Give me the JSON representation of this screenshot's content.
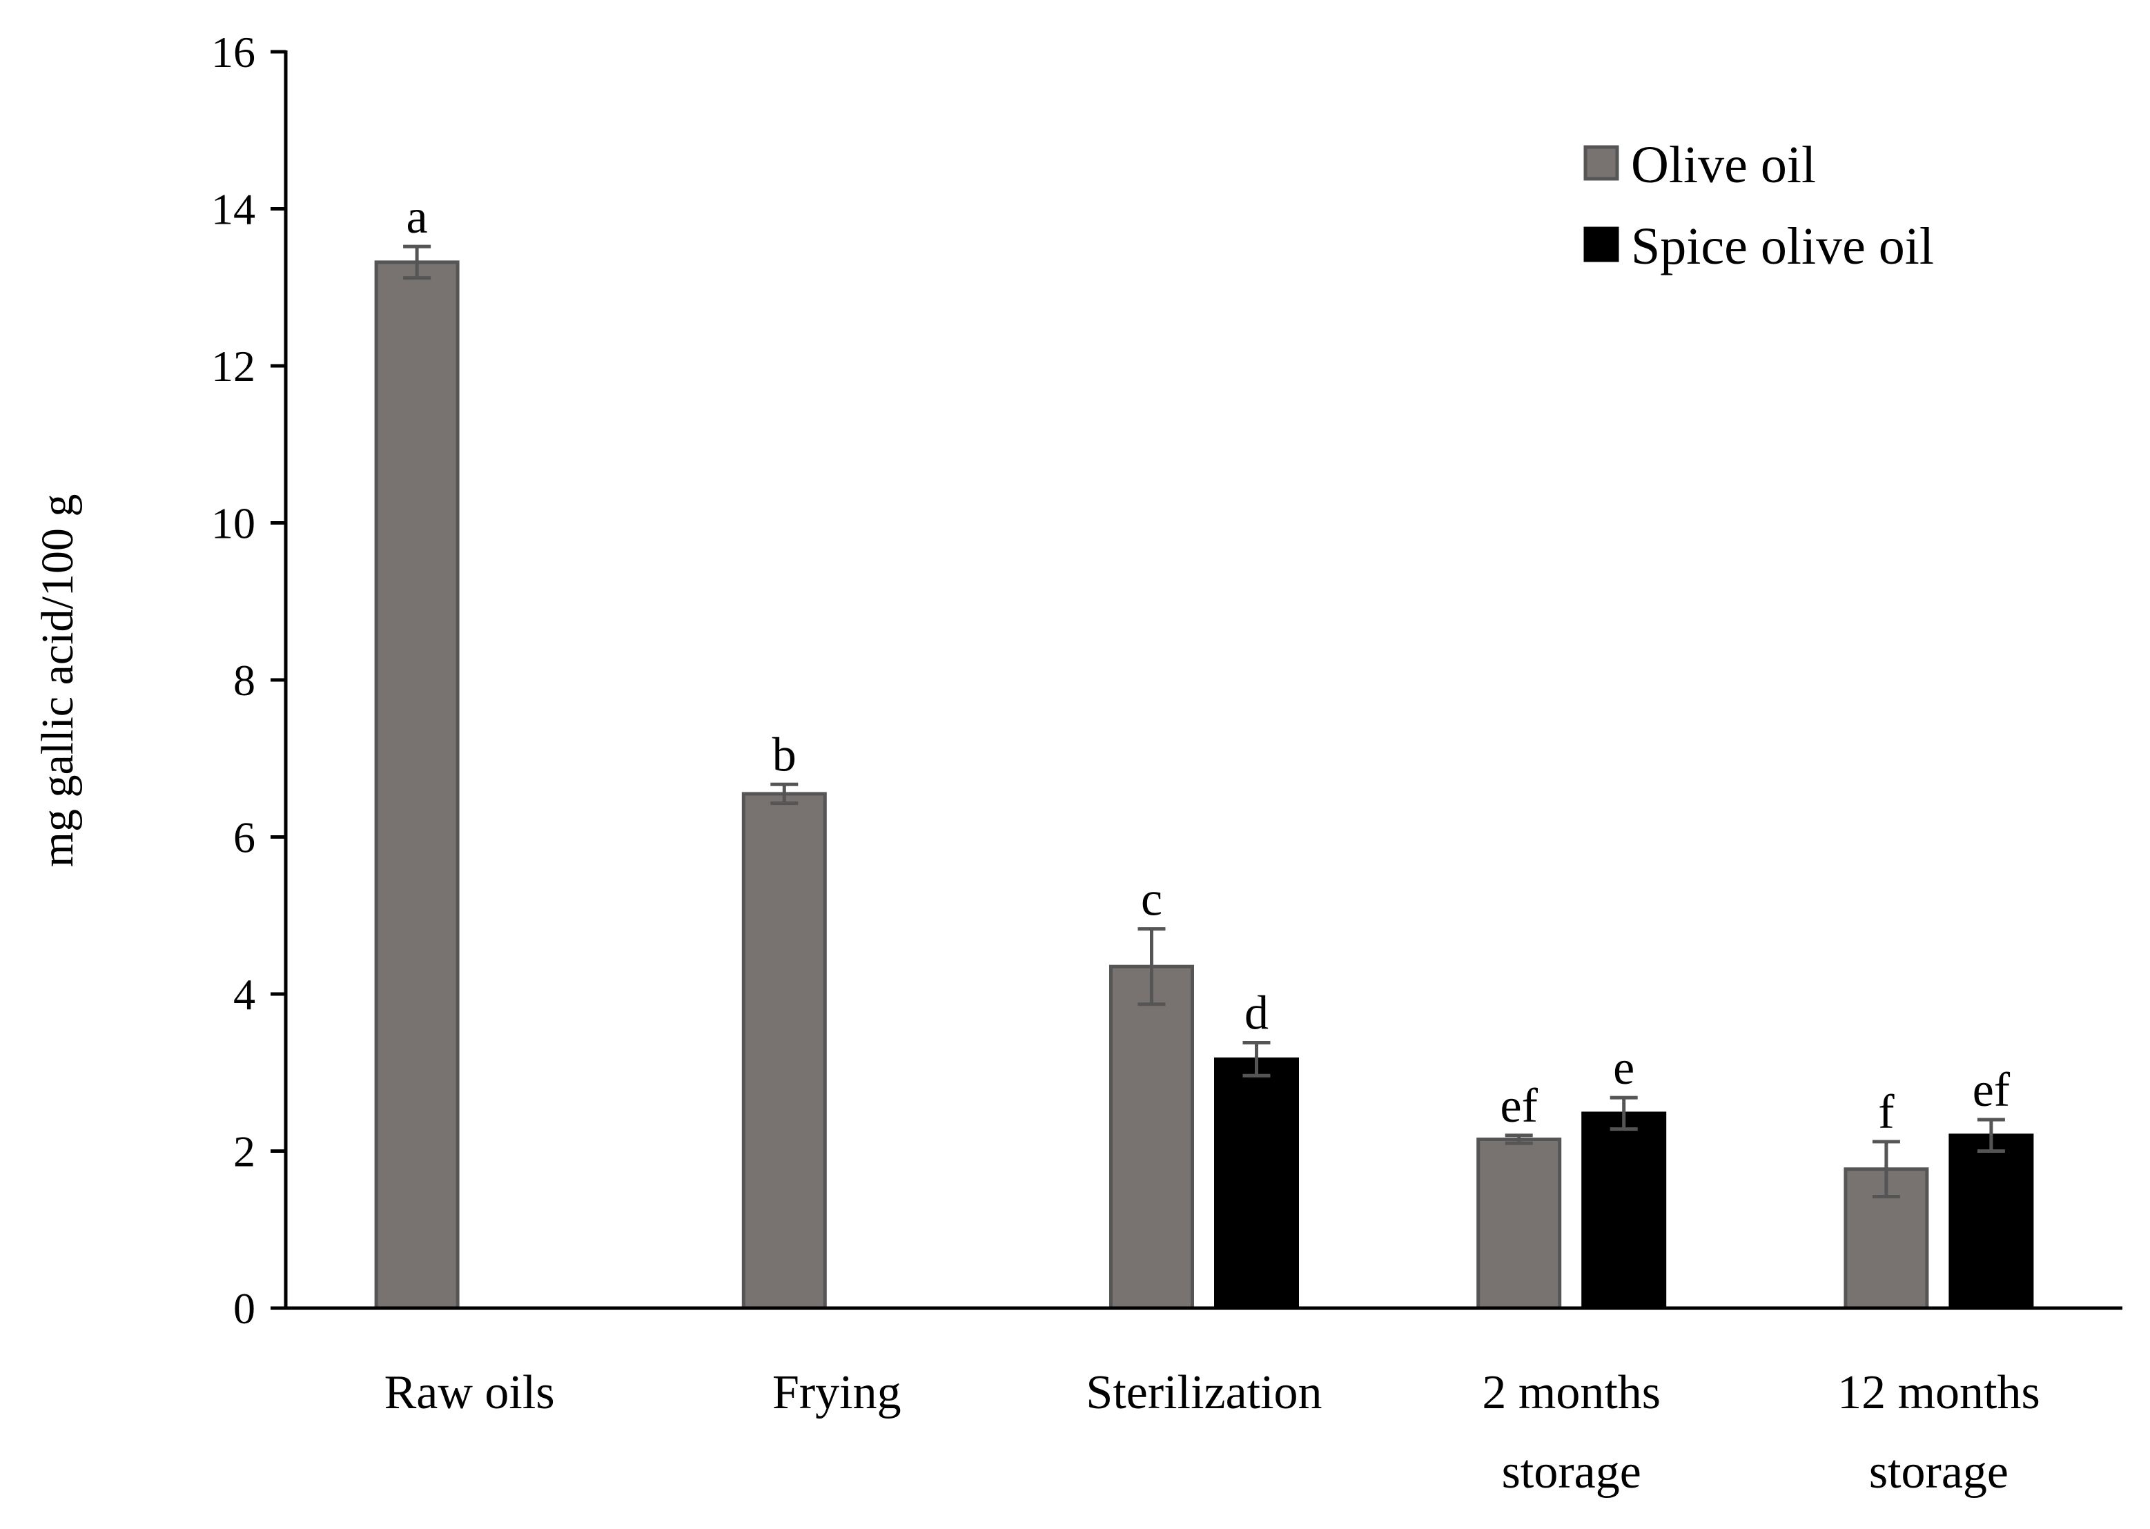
{
  "chart_data": {
    "type": "bar",
    "title": "",
    "xlabel": "",
    "ylabel": "mg gallic acid/100 g",
    "ylim": [
      0,
      16
    ],
    "yticks": [
      0,
      2,
      4,
      6,
      8,
      10,
      12,
      14,
      16
    ],
    "grid": false,
    "legend_position": "top-right",
    "categories": [
      [
        "Raw oils"
      ],
      [
        "Frying"
      ],
      [
        "Sterilization"
      ],
      [
        "2 months",
        "storage"
      ],
      [
        "12 months",
        "storage"
      ]
    ],
    "series": [
      {
        "name": "Olive oil",
        "color": "#787371",
        "edge": "#555555",
        "values": [
          13.32,
          6.55,
          4.35,
          2.15,
          1.77
        ],
        "errors": [
          0.2,
          0.12,
          0.48,
          0.05,
          0.35
        ],
        "labels": [
          "a",
          "b",
          "c",
          "ef",
          "f"
        ]
      },
      {
        "name": "Spice olive oil",
        "color": "#000000",
        "edge": "#000000",
        "values": [
          null,
          null,
          3.17,
          2.48,
          2.2
        ],
        "errors": [
          null,
          null,
          0.21,
          0.2,
          0.2
        ],
        "labels": [
          null,
          null,
          "d",
          "e",
          "ef"
        ]
      }
    ]
  }
}
